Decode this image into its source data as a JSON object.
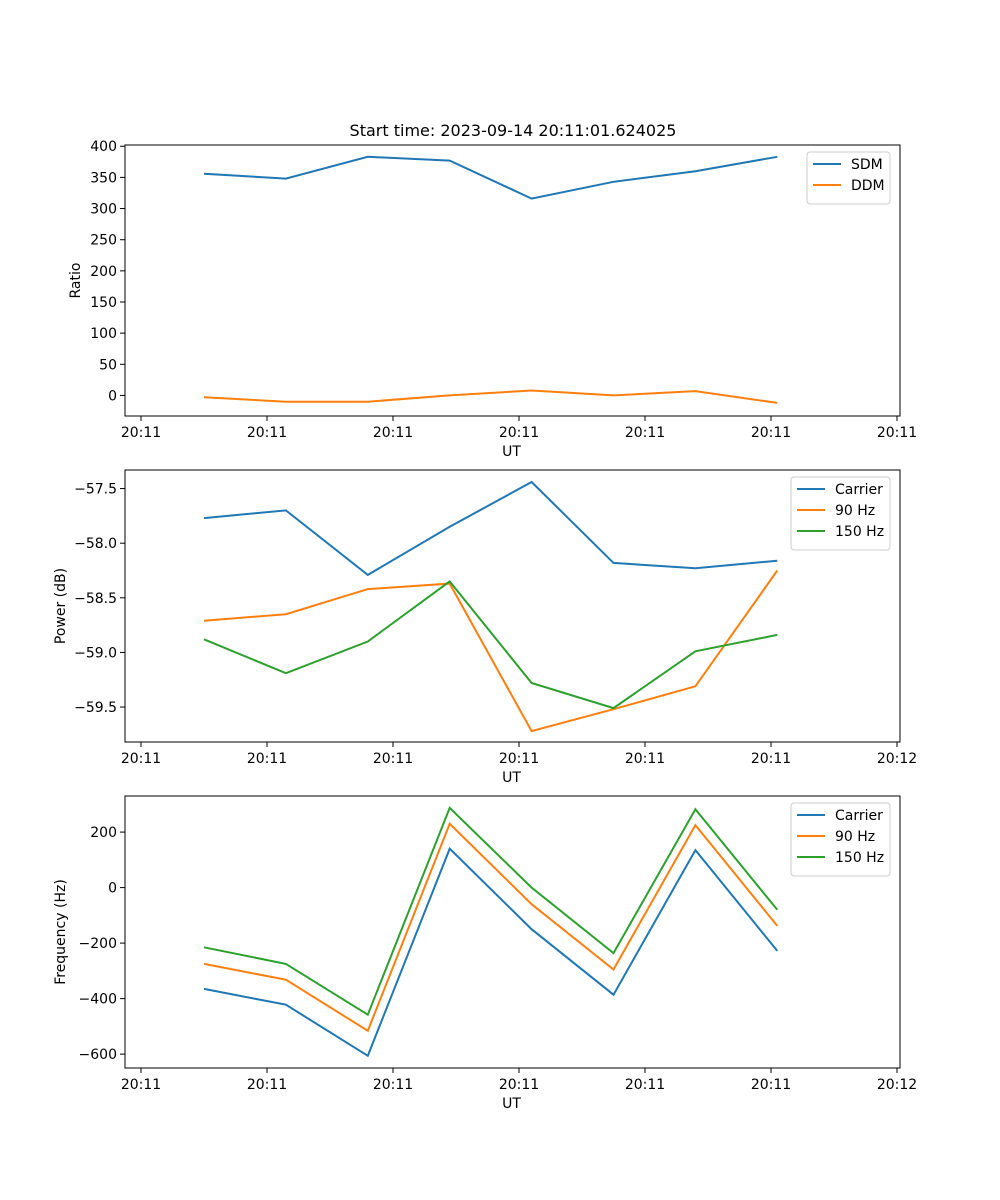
{
  "figure_title": "Start time: 2023-09-14 20:11:01.624025",
  "chart_data": [
    {
      "type": "line",
      "title": "Start time: 2023-09-14 20:11:01.624025",
      "xlabel": "UT",
      "ylabel": "Ratio",
      "xlim": [
        0,
        6
      ],
      "ylim": [
        -33,
        402
      ],
      "x_ticks": [
        0.12,
        1.12,
        2.12,
        3.12,
        4.12,
        5.12,
        6.12
      ],
      "x_tick_labels": [
        "20:11",
        "20:11",
        "20:11",
        "20:11",
        "20:11",
        "20:11",
        "20:11"
      ],
      "x_tick_values": [
        0,
        1,
        2,
        3,
        4,
        5,
        6
      ],
      "y_ticks": [
        0,
        50,
        100,
        150,
        200,
        250,
        300,
        350,
        400
      ],
      "y_tick_labels": [
        "0",
        "50",
        "100",
        "150",
        "200",
        "250",
        "300",
        "350",
        "400"
      ],
      "legend": "top-right",
      "x": [
        0.5,
        1.15,
        1.8,
        2.45,
        3.1,
        3.75,
        4.4,
        5.05
      ],
      "series": [
        {
          "name": "SDM",
          "color": "#1f77b4",
          "values": [
            356,
            348,
            383,
            377,
            316,
            343,
            360,
            383
          ]
        },
        {
          "name": "DDM",
          "color": "#ff7f0e",
          "values": [
            -3,
            -10,
            -10,
            0,
            8,
            0,
            7,
            -12
          ]
        }
      ]
    },
    {
      "type": "line",
      "title": "",
      "xlabel": "UT",
      "ylabel": "Power (dB)",
      "xlim": [
        0,
        6
      ],
      "ylim": [
        -59.82,
        -57.33
      ],
      "x_tick_values": [
        0,
        1,
        2,
        3,
        4,
        5,
        6
      ],
      "x_tick_labels": [
        "20:11",
        "20:11",
        "20:11",
        "20:11",
        "20:11",
        "20:11",
        "20:12"
      ],
      "y_ticks": [
        -59.5,
        -59.0,
        -58.5,
        -58.0,
        -57.5
      ],
      "y_tick_labels": [
        "−59.5",
        "−59.0",
        "−58.5",
        "−58.0",
        "−57.5"
      ],
      "legend": "top-right",
      "x": [
        0.5,
        1.15,
        1.8,
        2.45,
        3.1,
        3.75,
        4.4,
        5.05
      ],
      "series": [
        {
          "name": "Carrier",
          "color": "#1f77b4",
          "values": [
            -57.77,
            -57.7,
            -58.29,
            -57.85,
            -57.44,
            -58.18,
            -58.23,
            -58.16
          ]
        },
        {
          "name": "90 Hz",
          "color": "#ff7f0e",
          "values": [
            -58.71,
            -58.65,
            -58.42,
            -58.37,
            -59.72,
            -59.52,
            -59.31,
            -58.25
          ]
        },
        {
          "name": "150 Hz",
          "color": "#2ca02c",
          "values": [
            -58.88,
            -59.19,
            -58.9,
            -58.35,
            -59.28,
            -59.51,
            -58.99,
            -58.84
          ]
        }
      ]
    },
    {
      "type": "line",
      "title": "",
      "xlabel": "UT",
      "ylabel": "Frequency (Hz)",
      "xlim": [
        0,
        6
      ],
      "ylim": [
        -650,
        330
      ],
      "x_tick_values": [
        0,
        1,
        2,
        3,
        4,
        5,
        6
      ],
      "x_tick_labels": [
        "20:11",
        "20:11",
        "20:11",
        "20:11",
        "20:11",
        "20:11",
        "20:12"
      ],
      "y_ticks": [
        -600,
        -400,
        -200,
        0,
        200
      ],
      "y_tick_labels": [
        "−600",
        "−400",
        "−200",
        "0",
        "200"
      ],
      "legend": "top-right",
      "x": [
        0.5,
        1.15,
        1.8,
        2.45,
        3.1,
        3.75,
        4.4,
        5.05
      ],
      "series": [
        {
          "name": "Carrier",
          "color": "#1f77b4",
          "values": [
            -365,
            -422,
            -606,
            140,
            -150,
            -386,
            135,
            -228
          ]
        },
        {
          "name": "90 Hz",
          "color": "#ff7f0e",
          "values": [
            -275,
            -332,
            -516,
            230,
            -60,
            -295,
            225,
            -138
          ]
        },
        {
          "name": "150 Hz",
          "color": "#2ca02c",
          "values": [
            -215,
            -275,
            -458,
            287,
            0,
            -236,
            282,
            -80
          ]
        }
      ]
    }
  ]
}
